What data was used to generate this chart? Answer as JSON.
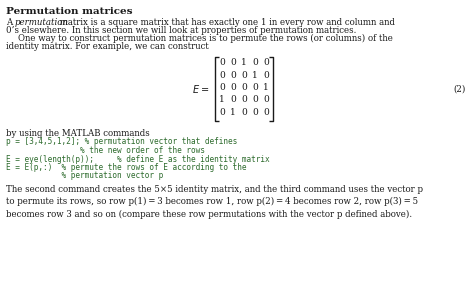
{
  "title": "Permutation matrices",
  "para1a": "A ",
  "para1_italic": "permutation",
  "para1b": " matrix is a square matrix that has exactly one 1 in every row and column and\n0’s elsewhere. In this section we will look at properties of permutation matrices.",
  "para2": "    One way to construct permutation matrices is to permute the rows (or columns) of the\nidentity matrix. For example, we can construct",
  "matrix": [
    [
      0,
      0,
      1,
      0,
      0
    ],
    [
      0,
      0,
      0,
      1,
      0
    ],
    [
      0,
      0,
      0,
      0,
      1
    ],
    [
      1,
      0,
      0,
      0,
      0
    ],
    [
      0,
      1,
      0,
      0,
      0
    ]
  ],
  "eq_number": "(2)",
  "code_line1": "p = [3,4,5,1,2]; % permutation vector that defines",
  "code_line2": "                % the new order of the rows",
  "code_line3": "E = eye(length(p));     % define E as the identity matrix",
  "code_line4": "E = E(p,:)  % permute the rows of E according to the",
  "code_line5": "            % permutation vector p",
  "by_text": "by using the MATLAB commands",
  "para3": "The second command creates the 5×5 identity matrix, and the third command uses the vector p\nto permute its rows, so row p(1) = 3 becomes row 1, row p(2) = 4 becomes row 2, row p(3) = 5\nbecomes row 3 and so on (compare these row permutations with the vector p defined above).",
  "bg_color": "#ffffff",
  "text_color": "#1a1a1a",
  "code_color": "#2d6b2d",
  "title_fs": 7.5,
  "body_fs": 6.2,
  "code_fs": 5.6,
  "mat_fs": 6.5
}
